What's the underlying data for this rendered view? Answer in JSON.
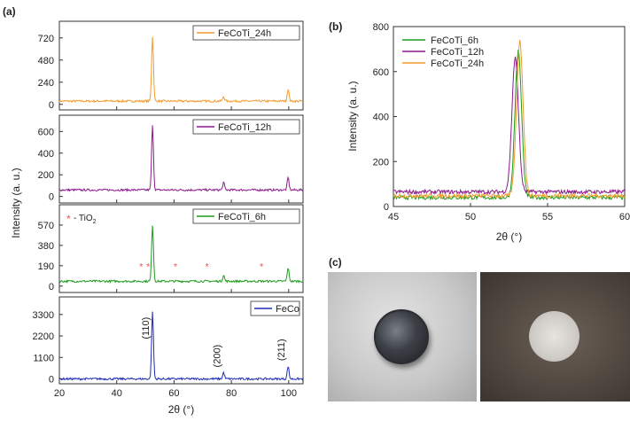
{
  "colors": {
    "h24": "#f39b2d",
    "h12": "#8b1a8b",
    "h6": "#1e9a1e",
    "feco": "#1f2bb3",
    "tio2": "#ee5555",
    "axis": "#333333"
  },
  "chart_data": [
    {
      "type": "line",
      "panel_label": "(a)",
      "xlabel": "2θ (°)",
      "ylabel": "Intensity (a. u.)",
      "xlim": [
        20,
        105
      ],
      "x_ticks": [
        "20",
        "40",
        "60",
        "80",
        "100"
      ],
      "grid": false,
      "subplots": [
        {
          "name": "FeCoTi_24h",
          "ylim": [
            -60,
            900
          ],
          "y_ticks": [
            "0",
            "240",
            "480",
            "720"
          ],
          "y_tick_values": [
            0,
            240,
            480,
            720
          ],
          "baseline": 35,
          "peaks": [
            {
              "x": 52.5,
              "y": 740
            },
            {
              "x": 77.3,
              "y": 85
            },
            {
              "x": 99.8,
              "y": 170
            }
          ],
          "legend": "top-right"
        },
        {
          "name": "FeCoTi_12h",
          "ylim": [
            -60,
            750
          ],
          "y_ticks": [
            "0",
            "200",
            "400",
            "600"
          ],
          "y_tick_values": [
            0,
            200,
            400,
            600
          ],
          "baseline": 60,
          "peaks": [
            {
              "x": 52.5,
              "y": 650
            },
            {
              "x": 77.3,
              "y": 130
            },
            {
              "x": 99.8,
              "y": 175
            }
          ],
          "legend": "top-right"
        },
        {
          "name": "FeCoTi_6h",
          "ylim": [
            -60,
            760
          ],
          "y_ticks": [
            "0",
            "190",
            "380",
            "570"
          ],
          "y_tick_values": [
            0,
            190,
            380,
            570
          ],
          "baseline": 45,
          "peaks": [
            {
              "x": 52.5,
              "y": 570
            },
            {
              "x": 77.3,
              "y": 100
            },
            {
              "x": 99.8,
              "y": 170
            }
          ],
          "tio2_markers_x": [
            48.5,
            51.0,
            60.5,
            71.5,
            90.5
          ],
          "annotation": "- TiO",
          "annotation_sub": "2",
          "legend": "top-right"
        },
        {
          "name": "FeCo",
          "ylim": [
            -250,
            4200
          ],
          "y_ticks": [
            "0",
            "1100",
            "2200",
            "3300"
          ],
          "y_tick_values": [
            0,
            1100,
            2200,
            3300
          ],
          "baseline": 0,
          "peaks": [
            {
              "x": 52.5,
              "y": 3400
            },
            {
              "x": 77.3,
              "y": 320
            },
            {
              "x": 99.8,
              "y": 650
            }
          ],
          "peak_labels": [
            "(110)",
            "(200)",
            "(211)"
          ],
          "legend": "top-right"
        }
      ]
    },
    {
      "type": "line",
      "panel_label": "(b)",
      "xlabel": "2θ (°)",
      "ylabel": "Intensity (a. u.)",
      "xlim": [
        45,
        60
      ],
      "ylim": [
        0,
        800
      ],
      "x_ticks": [
        "45",
        "50",
        "55",
        "60"
      ],
      "x_tick_values": [
        45,
        50,
        55,
        60
      ],
      "y_ticks": [
        "0",
        "200",
        "400",
        "600",
        "800"
      ],
      "y_tick_values": [
        0,
        200,
        400,
        600,
        800
      ],
      "legend": "top-left",
      "series": [
        {
          "name": "FeCoTi_6h",
          "baseline": 40,
          "peak_x": 53.1,
          "peak_y": 690
        },
        {
          "name": "FeCoTi_12h",
          "baseline": 65,
          "peak_x": 52.9,
          "peak_y": 660
        },
        {
          "name": "FeCoTi_24h",
          "baseline": 48,
          "peak_x": 53.2,
          "peak_y": 735
        }
      ]
    }
  ],
  "panel_c": {
    "label": "(c)"
  }
}
